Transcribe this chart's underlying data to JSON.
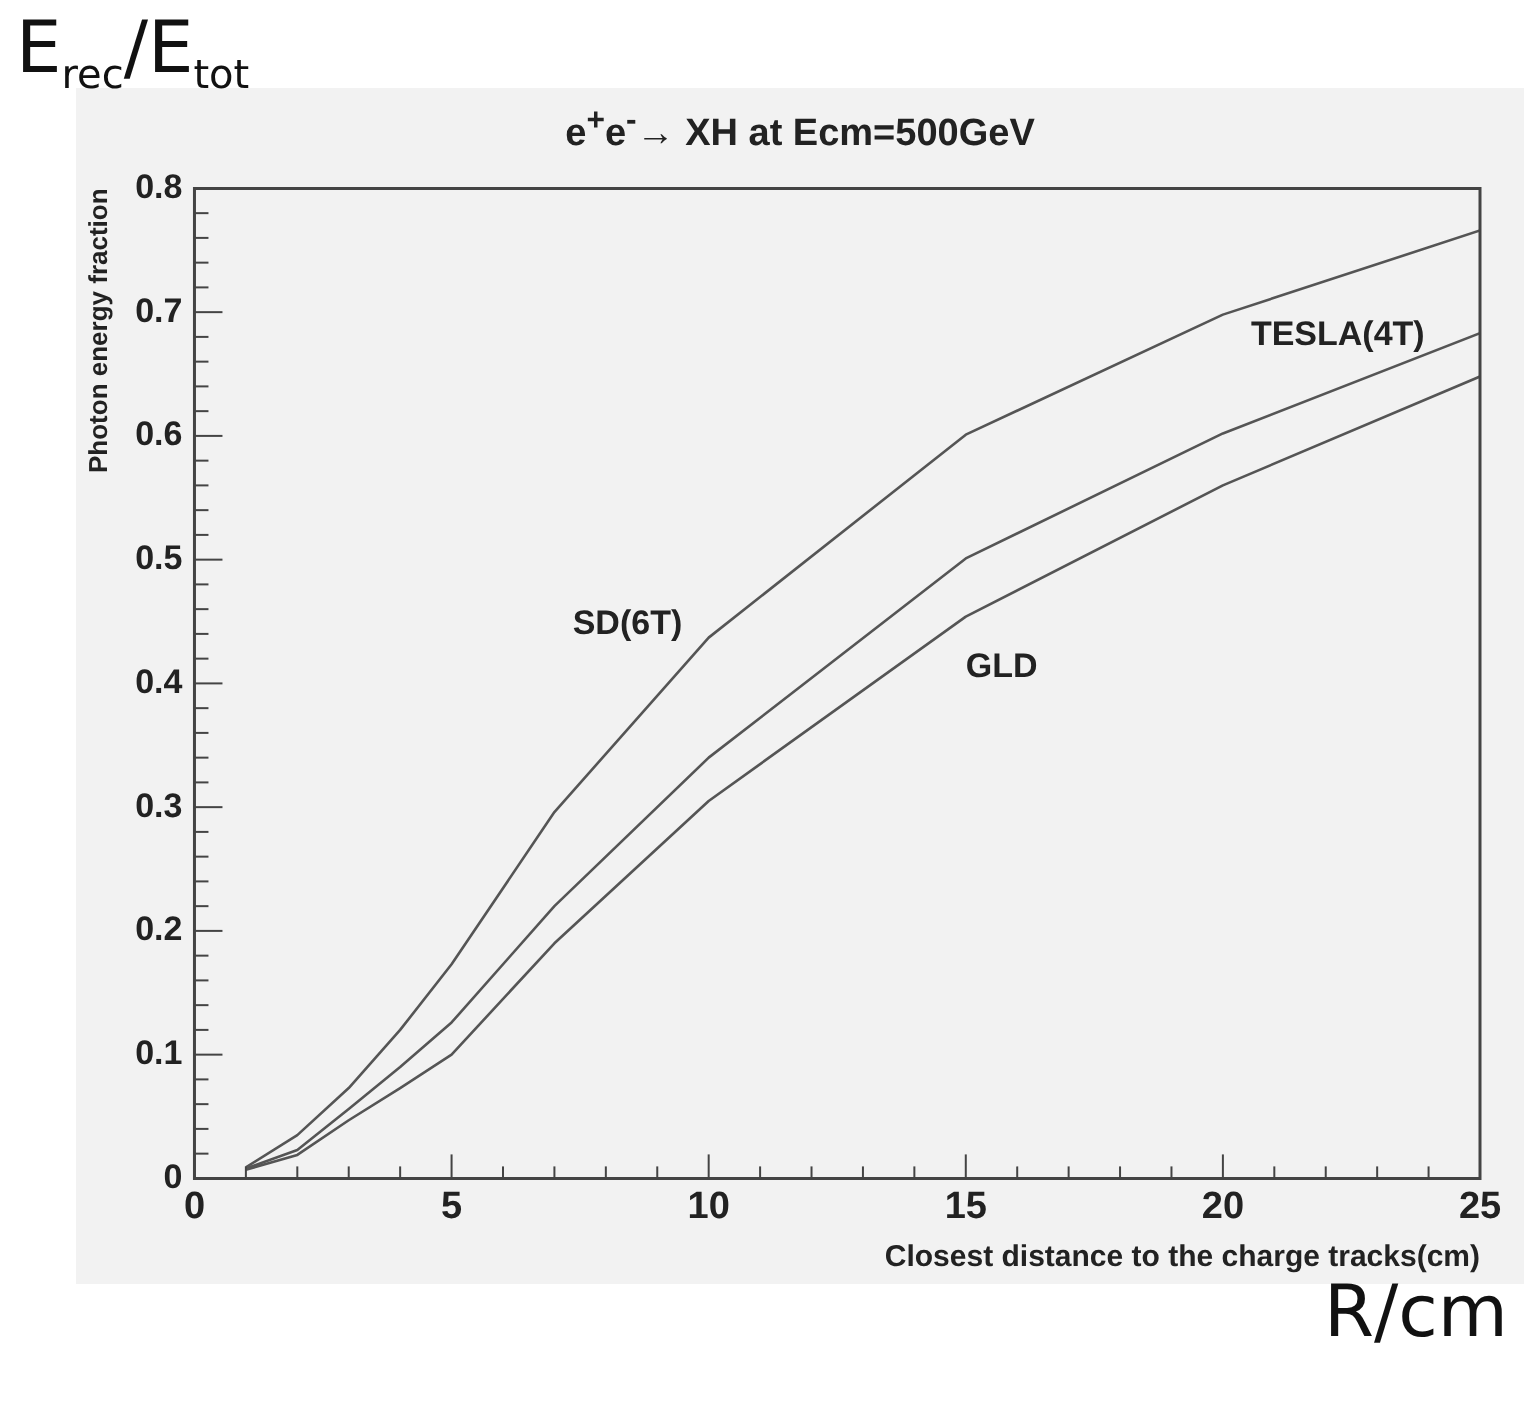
{
  "chart_data": {
    "type": "line",
    "title": "e$^{+}$e$^{-}$→ XH at Ecm=500GeV",
    "xlabel": "Closest distance to the charge tracks(cm)",
    "ylabel": "Photon energy fraction",
    "annotations": [
      "E$_{rec}$/E$_{tot}$",
      "R/cm"
    ],
    "x": [
      1,
      2,
      3,
      4,
      5,
      7,
      10,
      15,
      20,
      25
    ],
    "series": [
      {
        "name": "SD(6T)",
        "color": "#555555",
        "values": [
          0.009,
          0.035,
          0.073,
          0.12,
          0.173,
          0.296,
          0.437,
          0.601,
          0.698,
          0.766
        ]
      },
      {
        "name": "TESLA(4T)",
        "color": "#555555",
        "values": [
          0.008,
          0.023,
          0.056,
          0.09,
          0.126,
          0.22,
          0.34,
          0.501,
          0.602,
          0.683
        ]
      },
      {
        "name": "GLD",
        "color": "#555555",
        "values": [
          0.007,
          0.019,
          0.047,
          0.073,
          0.1,
          0.19,
          0.305,
          0.454,
          0.56,
          0.648
        ]
      }
    ],
    "xlim": [
      0,
      25
    ],
    "xticks": [
      0,
      5,
      10,
      15,
      20,
      25
    ],
    "ylim": [
      0,
      0.8
    ],
    "yticks": [
      0,
      0.1,
      0.2,
      0.3,
      0.4,
      0.5,
      0.6,
      0.7,
      0.8
    ],
    "grid": false,
    "legend": false,
    "marker": "none",
    "line_style": "solid"
  }
}
